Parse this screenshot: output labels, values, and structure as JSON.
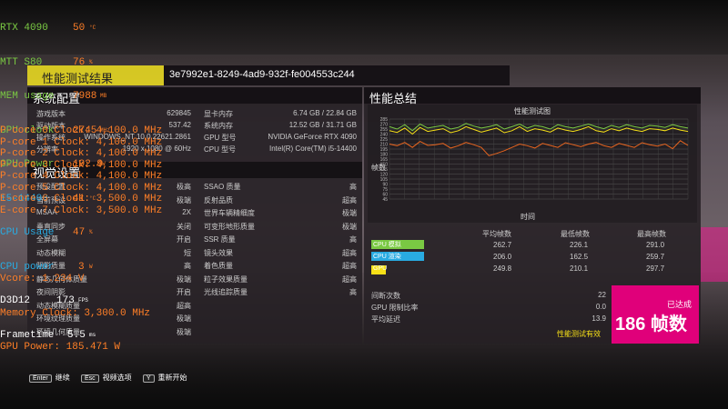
{
  "osd": {
    "gpu_name": "RTX 4090",
    "gpu_temp": "50",
    "gpu_temp_unit": "°C",
    "mtt_name": "MTT S80",
    "mtt_val": "76",
    "mtt_unit": "%",
    "mem_label": "MEM usage",
    "mem_val": "7988",
    "mem_unit": "MB",
    "gclk_label": "GPU clock",
    "gclk_val": "2745",
    "gclk_unit": "MHz",
    "gpow_label": "GPU Power",
    "gpow_val": "192.9",
    "gpow_unit": "W",
    "cpu_name": "i5-14400",
    "cpu_temp": "41",
    "cpu_temp_unit": "°C",
    "cpu_usage_label": "CPU Usage",
    "cpu_usage_val": "47",
    "cpu_usage_unit": "%",
    "cpu_power_label": "CPU power",
    "cpu_power_val": "3",
    "cpu_power_unit": "W",
    "api_label": "D3D12",
    "fps_val": "173",
    "fps_unit": "FPS",
    "ft_label": "Frametime",
    "ft_val": "5.5",
    "ft_unit": "ms",
    "cores": [
      "P-core 0 Clock: 4,100.0 MHz",
      "P-core 1 Clock: 4,100.0 MHz",
      "P-core 2 Clock: 4,100.0 MHz",
      "P-core 3 Clock: 4,100.0 MHz",
      "P-core 4 Clock: 4,100.0 MHz",
      "P-core 5 Clock: 4,100.0 MHz",
      "E-core 6 Clock: 3,500.0 MHz",
      "E-core 7 Clock: 3,500.0 MHz"
    ],
    "vcore": "Vcore: 1.234 V",
    "memclk": "Memory Clock: 3,300.0 MHz",
    "gpupower2": "GPU Power: 185.471 W"
  },
  "header": {
    "title": "性能测试结果",
    "guid": "3e7992e1-8249-4ad9-932f-fe004553c244"
  },
  "system": {
    "title": "系统配置",
    "left": [
      {
        "label": "游戏版本",
        "value": "629845"
      },
      {
        "label": "驱动版本",
        "value": "537.42"
      },
      {
        "label": "操作系统",
        "value": "WINDOWS_NT 10.0.22621.2861"
      },
      {
        "label": "分辨率",
        "value": "1920 x 1080 @ 60Hz"
      }
    ],
    "right": [
      {
        "label": "显卡内存",
        "value": "6.74 GB / 22.84 GB"
      },
      {
        "label": "系统内存",
        "value": "12.52 GB / 31.71 GB"
      },
      {
        "label": "GPU 型号",
        "value": "NVIDIA GeForce RTX 4090"
      },
      {
        "label": "CPU 型号",
        "value": "Intel(R) Core(TM) i5-14400"
      }
    ]
  },
  "visual": {
    "title": "视觉设置",
    "left": [
      {
        "label": "预设配置",
        "value": "极高"
      },
      {
        "label": "当前预设",
        "value": "极端"
      },
      {
        "label": "MSAA",
        "value": "2X"
      },
      {
        "label": "垂直同步",
        "value": "关闭"
      },
      {
        "label": "全屏幕",
        "value": "开启"
      },
      {
        "label": "动态模糊",
        "value": "短"
      },
      {
        "label": "阴影质量",
        "value": "高"
      },
      {
        "label": "静态几何体质量",
        "value": "极端"
      },
      {
        "label": "夜间阴影",
        "value": "开启"
      },
      {
        "label": "动态模糊质量",
        "value": "超高"
      },
      {
        "label": "环境纹理质量",
        "value": "极端"
      },
      {
        "label": "环境几何质量",
        "value": "极端"
      }
    ],
    "right": [
      {
        "label": "SSAO 质量",
        "value": "高"
      },
      {
        "label": "反射品质",
        "value": "超高"
      },
      {
        "label": "世界车辆精细度",
        "value": "极端"
      },
      {
        "label": "可变形地形质量",
        "value": "极端"
      },
      {
        "label": "SSR 质量",
        "value": "高"
      },
      {
        "label": "镜头效果",
        "value": "超高"
      },
      {
        "label": "着色质量",
        "value": "超高"
      },
      {
        "label": "粒子效果质量",
        "value": "超高"
      },
      {
        "label": "光线追踪质量",
        "value": "高"
      }
    ]
  },
  "summary": {
    "title": "性能总结",
    "chart_title": "性能测试图",
    "x_label": "时间",
    "y_label": "帧数",
    "col_avg": "平均帧数",
    "col_min": "最低帧数",
    "col_max": "最高帧数",
    "series": [
      {
        "label": "CPU 模拟",
        "avg": "262.7",
        "min": "226.1",
        "max": "291.0"
      },
      {
        "label": "CPU 渲染",
        "avg": "206.0",
        "min": "162.5",
        "max": "259.7"
      },
      {
        "label": "GPU",
        "avg": "249.8",
        "min": "210.1",
        "max": "297.7"
      }
    ],
    "stats": [
      {
        "label": "间断次数",
        "value": "22"
      },
      {
        "label": "GPU 限制比率",
        "value": "0.0"
      },
      {
        "label": "平均延迟",
        "value": "13.9"
      }
    ],
    "valid_text": "性能测试有效",
    "achieved": "已达成",
    "fps_big": "186 帧数"
  },
  "footer": [
    {
      "key": "Enter",
      "label": "继续"
    },
    {
      "key": "Esc",
      "label": "视频选项"
    },
    {
      "key": "Y",
      "label": "重新开始"
    }
  ],
  "colors": {
    "cpu_sim": "#7ac943",
    "cpu_render": "#29abe2",
    "gpu": "#f7e017",
    "accent": "#e0007a",
    "osd_orange": "#ff7f27",
    "osd_cyan": "#29abe2",
    "osd_green": "#7ac943"
  },
  "chart_data": {
    "type": "line",
    "title": "性能测试图",
    "xlabel": "时间",
    "ylabel": "帧数",
    "yticks": [
      285,
      270,
      255,
      240,
      225,
      210,
      195,
      180,
      165,
      150,
      135,
      120,
      105,
      90,
      75,
      60,
      45
    ],
    "ylim": [
      45,
      285
    ],
    "x": [
      0,
      1,
      2,
      3,
      4,
      5,
      6,
      7,
      8,
      9,
      10,
      11,
      12,
      13,
      14,
      15,
      16,
      17,
      18,
      19,
      20,
      21,
      22,
      23,
      24,
      25,
      26,
      27,
      28,
      29,
      30,
      31,
      32,
      33,
      34,
      35,
      36,
      37,
      38,
      39
    ],
    "series": [
      {
        "name": "CPU 模拟",
        "values": [
          262,
          255,
          268,
          250,
          270,
          258,
          262,
          266,
          255,
          260,
          272,
          264,
          258,
          262,
          268,
          255,
          262,
          270,
          258,
          266,
          262,
          255,
          268,
          262,
          258,
          264,
          270,
          262,
          256,
          266,
          260,
          268,
          262,
          258,
          266,
          264,
          260,
          268,
          262,
          258
        ]
      },
      {
        "name": "CPU 渲染",
        "values": [
          210,
          205,
          215,
          200,
          218,
          206,
          208,
          212,
          198,
          205,
          215,
          208,
          200,
          175,
          182,
          190,
          200,
          210,
          205,
          198,
          212,
          206,
          200,
          214,
          208,
          202,
          210,
          215,
          205,
          200,
          212,
          206,
          200,
          214,
          208,
          204,
          210,
          196,
          220,
          206
        ]
      },
      {
        "name": "GPU",
        "values": [
          250,
          245,
          258,
          240,
          260,
          248,
          252,
          256,
          244,
          250,
          262,
          254,
          246,
          252,
          258,
          244,
          250,
          262,
          248,
          256,
          252,
          246,
          258,
          252,
          248,
          254,
          262,
          250,
          246,
          256,
          250,
          258,
          252,
          248,
          256,
          254,
          250,
          258,
          252,
          248
        ]
      }
    ]
  }
}
